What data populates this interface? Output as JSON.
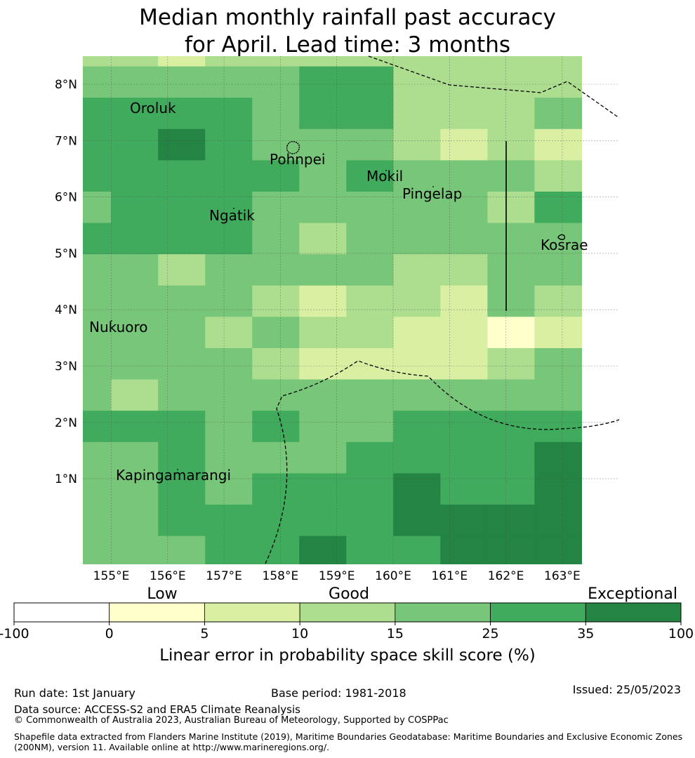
{
  "title": {
    "line1": "Median monthly rainfall past accuracy",
    "line2": "for April. Lead time: 3 months"
  },
  "map": {
    "lon_labels": [
      "155°E",
      "156°E",
      "157°E",
      "158°E",
      "159°E",
      "160°E",
      "161°E",
      "162°E",
      "163°E"
    ],
    "lat_labels": [
      "8°N",
      "7°N",
      "6°N",
      "5°N",
      "4°N",
      "3°N",
      "2°N",
      "1°N"
    ],
    "places": [
      {
        "name": "Oroluk"
      },
      {
        "name": "Pohnpei"
      },
      {
        "name": "Mokil"
      },
      {
        "name": "Pingelap"
      },
      {
        "name": "Ngatik"
      },
      {
        "name": "Kosrae"
      },
      {
        "name": "Nukuoro"
      },
      {
        "name": "Kapingamarangi"
      }
    ],
    "grid_levels": [
      [
        3,
        3,
        2,
        3,
        3,
        3,
        3,
        3,
        3,
        3,
        3
      ],
      [
        4,
        4,
        4,
        4,
        4,
        5,
        5,
        3,
        3,
        3,
        3
      ],
      [
        5,
        5,
        5,
        5,
        4,
        5,
        5,
        3,
        3,
        3,
        4
      ],
      [
        5,
        5,
        6,
        5,
        4,
        4,
        4,
        3,
        2,
        3,
        2
      ],
      [
        5,
        5,
        5,
        5,
        5,
        4,
        5,
        4,
        4,
        4,
        3
      ],
      [
        4,
        5,
        5,
        5,
        4,
        4,
        4,
        4,
        4,
        3,
        5
      ],
      [
        5,
        5,
        5,
        5,
        4,
        3,
        4,
        4,
        4,
        4,
        4
      ],
      [
        4,
        4,
        3,
        4,
        4,
        4,
        4,
        3,
        3,
        4,
        4
      ],
      [
        4,
        4,
        4,
        4,
        3,
        2,
        3,
        3,
        2,
        4,
        3
      ],
      [
        4,
        4,
        4,
        3,
        4,
        3,
        3,
        2,
        2,
        1,
        2
      ],
      [
        4,
        4,
        4,
        4,
        3,
        2,
        2,
        2,
        2,
        3,
        4
      ],
      [
        4,
        3,
        4,
        4,
        4,
        4,
        4,
        4,
        4,
        4,
        4
      ],
      [
        5,
        5,
        5,
        4,
        5,
        4,
        4,
        5,
        5,
        5,
        5
      ],
      [
        4,
        4,
        5,
        4,
        4,
        4,
        5,
        5,
        5,
        5,
        6
      ],
      [
        4,
        4,
        5,
        4,
        5,
        5,
        5,
        6,
        5,
        5,
        6
      ],
      [
        4,
        4,
        5,
        5,
        5,
        5,
        5,
        6,
        6,
        6,
        6
      ],
      [
        4,
        4,
        4,
        5,
        5,
        6,
        5,
        5,
        6,
        6,
        6
      ],
      [
        5,
        4,
        5,
        5,
        5,
        6,
        6,
        6,
        5,
        6,
        6
      ],
      [
        5,
        5,
        5,
        5,
        6,
        6,
        6,
        6,
        5,
        6,
        6
      ]
    ]
  },
  "legend": {
    "categories": [
      "Low",
      "Good",
      "Exceptional"
    ],
    "colors": [
      "#ffffff",
      "#ffffcc",
      "#d9f0a3",
      "#addd8e",
      "#78c679",
      "#41ab5d",
      "#238443"
    ],
    "ticks": [
      "-100",
      "0",
      "5",
      "10",
      "15",
      "25",
      "35",
      "100"
    ],
    "title": "Linear error in probability space skill score (%)"
  },
  "footer": {
    "run_date": "Run date: 1st January",
    "base_period": "Base period: 1981-2018",
    "issued": "Issued: 25/05/2023",
    "data_source": "Data source: ACCESS-S2 and ERA5 Climate Reanalysis",
    "copyright": "© Commonwealth of Australia 2023, Australian Bureau of Meteorology, Supported by COSPPac",
    "shapefile_line1": "Shapefile data extracted from Flanders Marine Institute (2019), Maritime Boundaries Geodatabase: Maritime Boundaries and Exclusive Economic Zones",
    "shapefile_line2": "(200NM), version 11. Available online at http://www.marineregions.org/."
  }
}
